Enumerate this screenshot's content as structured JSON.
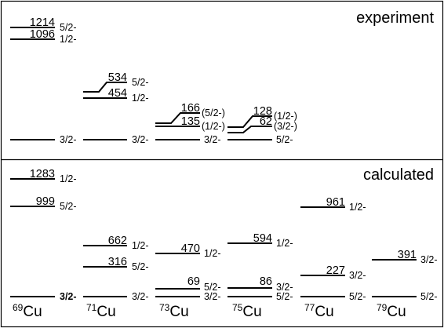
{
  "panels": {
    "experiment": {
      "title": "experiment",
      "columns": [
        {
          "isotope": "69Cu",
          "levels": [
            {
              "energy": "",
              "spin": "3/2-"
            },
            {
              "energy": "1096",
              "spin": "1/2-"
            },
            {
              "energy": "1214",
              "spin": "5/2-"
            }
          ]
        },
        {
          "isotope": "71Cu",
          "levels": [
            {
              "energy": "",
              "spin": "3/2-"
            },
            {
              "energy": "454",
              "spin": "1/2-"
            },
            {
              "energy": "534",
              "spin": "5/2-"
            }
          ]
        },
        {
          "isotope": "73Cu",
          "levels": [
            {
              "energy": "",
              "spin": "3/2-"
            },
            {
              "energy": "135",
              "spin": "(1/2-)"
            },
            {
              "energy": "166",
              "spin": "(5/2-)"
            }
          ]
        },
        {
          "isotope": "75Cu",
          "levels": [
            {
              "energy": "",
              "spin": "5/2-"
            },
            {
              "energy": "62",
              "spin": "(3/2-)"
            },
            {
              "energy": "128",
              "spin": "(1/2-)"
            }
          ]
        }
      ]
    },
    "calculated": {
      "title": "calculated",
      "columns": [
        {
          "isotope": "69Cu",
          "levels": [
            {
              "energy": "",
              "spin": "3/2-"
            },
            {
              "energy": "999",
              "spin": "5/2-"
            },
            {
              "energy": "1283",
              "spin": "1/2-"
            }
          ]
        },
        {
          "isotope": "71Cu",
          "levels": [
            {
              "energy": "",
              "spin": "3/2-"
            },
            {
              "energy": "316",
              "spin": "5/2-"
            },
            {
              "energy": "662",
              "spin": "1/2-"
            }
          ]
        },
        {
          "isotope": "73Cu",
          "levels": [
            {
              "energy": "",
              "spin": "3/2-"
            },
            {
              "energy": "69",
              "spin": "5/2-"
            },
            {
              "energy": "470",
              "spin": "1/2-"
            }
          ]
        },
        {
          "isotope": "75Cu",
          "levels": [
            {
              "energy": "",
              "spin": "5/2-"
            },
            {
              "energy": "86",
              "spin": "3/2-"
            },
            {
              "energy": "594",
              "spin": "1/2-"
            }
          ]
        },
        {
          "isotope": "77Cu",
          "levels": [
            {
              "energy": "",
              "spin": "5/2-"
            },
            {
              "energy": "227",
              "spin": "3/2-"
            },
            {
              "energy": "961",
              "spin": "1/2-"
            }
          ]
        },
        {
          "isotope": "79Cu",
          "levels": [
            {
              "energy": "",
              "spin": "5/2-"
            },
            {
              "energy": "391",
              "spin": "3/2-"
            }
          ]
        }
      ]
    }
  },
  "isotopes": [
    {
      "mass": "69",
      "element": "Cu"
    },
    {
      "mass": "71",
      "element": "Cu"
    },
    {
      "mass": "73",
      "element": "Cu"
    },
    {
      "mass": "75",
      "element": "Cu"
    },
    {
      "mass": "77",
      "element": "Cu"
    },
    {
      "mass": "79",
      "element": "Cu"
    }
  ]
}
